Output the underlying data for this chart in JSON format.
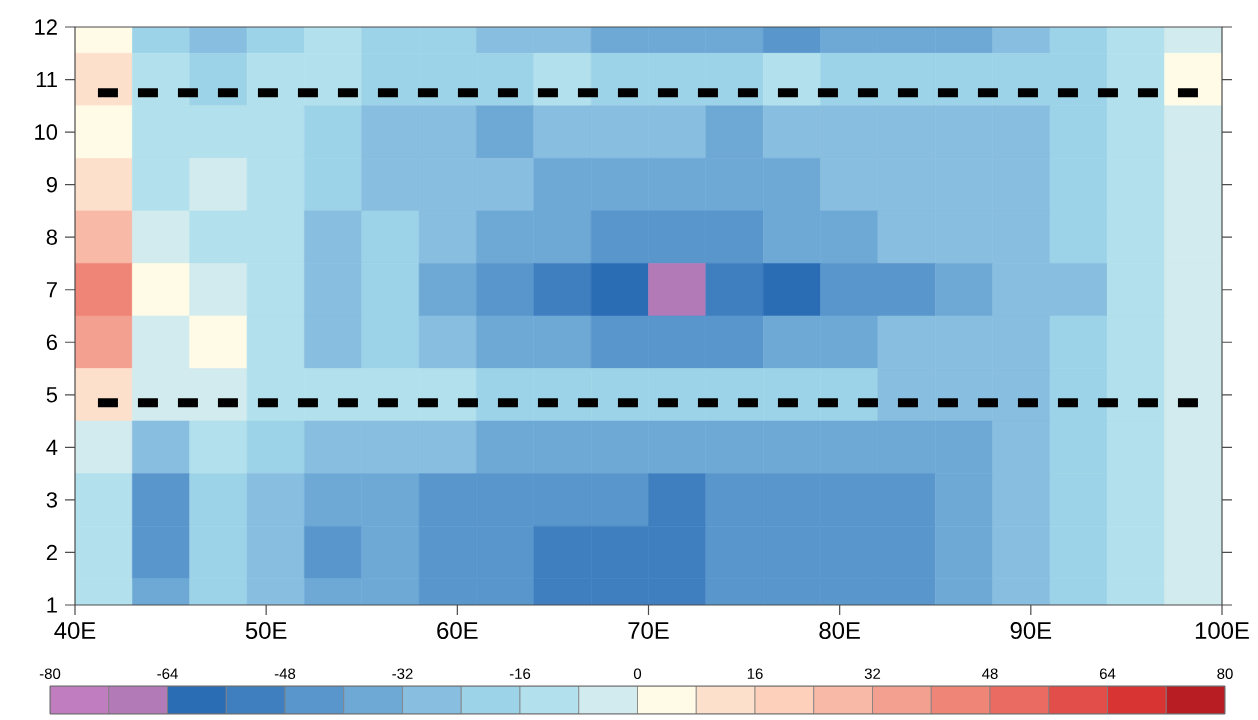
{
  "chart_data": {
    "type": "heatmap",
    "x": [
      41.5,
      44.5,
      47.5,
      50.5,
      53.5,
      56.5,
      59.5,
      62.5,
      65.5,
      68.5,
      71.5,
      74.5,
      77.5,
      80.5,
      83.5,
      86.5,
      89.5,
      92.5,
      95.5,
      98.5
    ],
    "y": [
      12,
      11,
      10,
      9,
      8,
      7,
      6,
      5,
      4,
      3,
      2,
      1
    ],
    "cells": [
      [
        4,
        -20,
        -28,
        -20,
        -12,
        -20,
        -20,
        -28,
        -28,
        -36,
        -36,
        -36,
        -44,
        -36,
        -36,
        -36,
        -28,
        -20,
        -12,
        -4
      ],
      [
        12,
        -12,
        -20,
        -12,
        -12,
        -20,
        -20,
        -20,
        -12,
        -20,
        -20,
        -20,
        -12,
        -20,
        -20,
        -20,
        -20,
        -20,
        -12,
        4
      ],
      [
        4,
        -12,
        -12,
        -12,
        -20,
        -28,
        -28,
        -36,
        -28,
        -28,
        -28,
        -36,
        -28,
        -28,
        -28,
        -28,
        -28,
        -20,
        -12,
        -4
      ],
      [
        12,
        -12,
        -4,
        -12,
        -20,
        -28,
        -28,
        -28,
        -36,
        -36,
        -36,
        -36,
        -36,
        -28,
        -28,
        -28,
        -28,
        -20,
        -12,
        -4
      ],
      [
        28,
        -4,
        -12,
        -12,
        -28,
        -20,
        -28,
        -36,
        -36,
        -44,
        -44,
        -44,
        -36,
        -36,
        -28,
        -28,
        -28,
        -20,
        -12,
        -4
      ],
      [
        44,
        4,
        -4,
        -12,
        -28,
        -20,
        -36,
        -44,
        -52,
        -60,
        -68,
        -52,
        -60,
        -44,
        -44,
        -36,
        -28,
        -28,
        -12,
        -4
      ],
      [
        36,
        -4,
        4,
        -12,
        -28,
        -20,
        -28,
        -36,
        -36,
        -44,
        -44,
        -44,
        -36,
        -36,
        -28,
        -28,
        -28,
        -20,
        -12,
        -4
      ],
      [
        12,
        -4,
        -4,
        -12,
        -12,
        -12,
        -12,
        -20,
        -20,
        -20,
        -20,
        -20,
        -20,
        -20,
        -28,
        -28,
        -28,
        -20,
        -12,
        -4
      ],
      [
        -4,
        -28,
        -12,
        -20,
        -28,
        -28,
        -28,
        -36,
        -36,
        -36,
        -36,
        -36,
        -36,
        -36,
        -36,
        -36,
        -28,
        -20,
        -12,
        -4
      ],
      [
        -12,
        -44,
        -20,
        -28,
        -36,
        -36,
        -44,
        -44,
        -44,
        -44,
        -52,
        -44,
        -44,
        -44,
        -44,
        -36,
        -28,
        -20,
        -12,
        -4
      ],
      [
        -12,
        -44,
        -20,
        -28,
        -44,
        -36,
        -44,
        -44,
        -52,
        -52,
        -52,
        -44,
        -44,
        -44,
        -44,
        -36,
        -28,
        -20,
        -12,
        -4
      ],
      [
        -12,
        -36,
        -20,
        -28,
        -36,
        -36,
        -44,
        -44,
        -52,
        -52,
        -52,
        -44,
        -44,
        -44,
        -44,
        -36,
        -28,
        -20,
        -12,
        -4
      ]
    ],
    "xlim": [
      40,
      100
    ],
    "xticks": [
      {
        "value": 40,
        "label": "40E"
      },
      {
        "value": 50,
        "label": "50E"
      },
      {
        "value": 60,
        "label": "60E"
      },
      {
        "value": 70,
        "label": "70E"
      },
      {
        "value": 80,
        "label": "80E"
      },
      {
        "value": 90,
        "label": "90E"
      },
      {
        "value": 100,
        "label": "100E"
      }
    ],
    "ylim": [
      1,
      12
    ],
    "yticks": [
      1,
      2,
      3,
      4,
      5,
      6,
      7,
      8,
      9,
      10,
      11,
      12
    ],
    "clim": [
      -80,
      80
    ],
    "cticks": [
      -80,
      -64,
      -48,
      -32,
      -16,
      0,
      16,
      32,
      48,
      64,
      80
    ],
    "colors": [
      "#c07ec0",
      "#b37ab8",
      "#2a6db5",
      "#3f7fc0",
      "#5896cc",
      "#6ea9d6",
      "#88bedf",
      "#9dd3e8",
      "#b2e0ec",
      "#d2ebee",
      "#fffbe6",
      "#fde0cc",
      "#fcd0bb",
      "#f8b9a6",
      "#f4a090",
      "#ef8577",
      "#ea6b61",
      "#e24e4a",
      "#d83434",
      "#b81d23"
    ],
    "ref_lines": [
      {
        "axis": "y",
        "value": 10.75,
        "color": "#000000",
        "line_style": "dashed"
      },
      {
        "axis": "y",
        "value": 4.85,
        "color": "#000000",
        "line_style": "dashed"
      }
    ]
  }
}
